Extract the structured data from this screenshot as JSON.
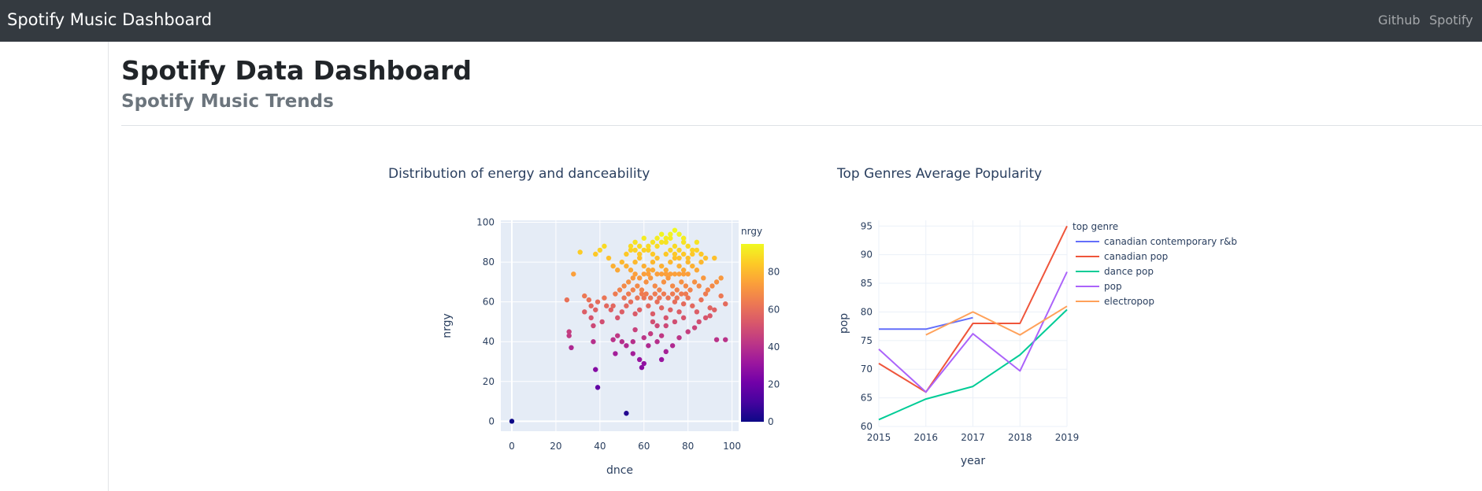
{
  "navbar": {
    "brand": "Spotify Music Dashboard",
    "links": [
      "Github",
      "Spotify"
    ]
  },
  "header": {
    "title": "Spotify Data Dashboard",
    "subtitle": "Spotify Music Trends"
  },
  "chart_data": [
    {
      "type": "scatter",
      "title": "Distribution of energy and danceability",
      "xlabel": "dnce",
      "ylabel": "nrgy",
      "xlim": [
        -5,
        103
      ],
      "ylim": [
        -5,
        101
      ],
      "xticks": [
        0,
        20,
        40,
        60,
        80,
        100
      ],
      "yticks": [
        0,
        20,
        40,
        60,
        80,
        100
      ],
      "colorbar": {
        "title": "nrgy",
        "range": [
          0,
          95
        ],
        "ticks": [
          0,
          20,
          40,
          60,
          80
        ]
      },
      "grid": true,
      "points": [
        [
          0,
          0
        ],
        [
          52,
          4
        ],
        [
          39,
          17
        ],
        [
          38,
          26
        ],
        [
          59,
          27
        ],
        [
          60,
          29
        ],
        [
          58,
          31
        ],
        [
          68,
          31
        ],
        [
          55,
          34
        ],
        [
          47,
          34
        ],
        [
          27,
          37
        ],
        [
          26,
          43
        ],
        [
          26,
          45
        ],
        [
          33,
          55
        ],
        [
          36,
          52
        ],
        [
          37,
          48
        ],
        [
          46,
          41
        ],
        [
          48,
          43
        ],
        [
          50,
          40
        ],
        [
          52,
          38
        ],
        [
          55,
          40
        ],
        [
          56,
          46
        ],
        [
          60,
          42
        ],
        [
          62,
          38
        ],
        [
          63,
          44
        ],
        [
          66,
          40
        ],
        [
          68,
          43
        ],
        [
          70,
          35
        ],
        [
          73,
          38
        ],
        [
          76,
          42
        ],
        [
          80,
          45
        ],
        [
          83,
          47
        ],
        [
          85,
          50
        ],
        [
          88,
          52
        ],
        [
          93,
          41
        ],
        [
          97,
          41
        ],
        [
          90,
          53
        ],
        [
          92,
          56
        ],
        [
          97,
          59
        ],
        [
          95,
          63
        ],
        [
          36,
          58
        ],
        [
          38,
          56
        ],
        [
          39,
          60
        ],
        [
          42,
          62
        ],
        [
          46,
          58
        ],
        [
          48,
          52
        ],
        [
          50,
          55
        ],
        [
          52,
          58
        ],
        [
          54,
          60
        ],
        [
          56,
          54
        ],
        [
          58,
          56
        ],
        [
          60,
          62
        ],
        [
          62,
          58
        ],
        [
          64,
          54
        ],
        [
          66,
          60
        ],
        [
          68,
          57
        ],
        [
          70,
          52
        ],
        [
          72,
          56
        ],
        [
          74,
          60
        ],
        [
          76,
          55
        ],
        [
          78,
          59
        ],
        [
          80,
          62
        ],
        [
          82,
          58
        ],
        [
          84,
          55
        ],
        [
          86,
          61
        ],
        [
          88,
          64
        ],
        [
          90,
          57
        ],
        [
          64,
          50
        ],
        [
          66,
          48
        ],
        [
          70,
          48
        ],
        [
          74,
          50
        ],
        [
          78,
          52
        ],
        [
          47,
          64
        ],
        [
          49,
          66
        ],
        [
          51,
          68
        ],
        [
          53,
          70
        ],
        [
          55,
          72
        ],
        [
          57,
          68
        ],
        [
          59,
          66
        ],
        [
          61,
          70
        ],
        [
          63,
          72
        ],
        [
          65,
          68
        ],
        [
          67,
          66
        ],
        [
          69,
          70
        ],
        [
          71,
          72
        ],
        [
          73,
          68
        ],
        [
          75,
          66
        ],
        [
          77,
          70
        ],
        [
          79,
          68
        ],
        [
          81,
          66
        ],
        [
          83,
          70
        ],
        [
          85,
          68
        ],
        [
          87,
          72
        ],
        [
          89,
          66
        ],
        [
          91,
          68
        ],
        [
          93,
          70
        ],
        [
          95,
          72
        ],
        [
          25,
          61
        ],
        [
          28,
          74
        ],
        [
          31,
          85
        ],
        [
          33,
          63
        ],
        [
          35,
          61
        ],
        [
          38,
          84
        ],
        [
          40,
          86
        ],
        [
          42,
          88
        ],
        [
          44,
          82
        ],
        [
          46,
          78
        ],
        [
          48,
          76
        ],
        [
          50,
          80
        ],
        [
          52,
          84
        ],
        [
          54,
          86
        ],
        [
          56,
          90
        ],
        [
          58,
          88
        ],
        [
          60,
          92
        ],
        [
          62,
          86
        ],
        [
          64,
          84
        ],
        [
          66,
          88
        ],
        [
          68,
          90
        ],
        [
          70,
          92
        ],
        [
          72,
          94
        ],
        [
          74,
          88
        ],
        [
          76,
          86
        ],
        [
          78,
          90
        ],
        [
          80,
          88
        ],
        [
          82,
          86
        ],
        [
          84,
          90
        ],
        [
          86,
          84
        ],
        [
          88,
          82
        ],
        [
          92,
          82
        ],
        [
          52,
          78
        ],
        [
          54,
          76
        ],
        [
          56,
          80
        ],
        [
          58,
          82
        ],
        [
          60,
          78
        ],
        [
          62,
          76
        ],
        [
          64,
          80
        ],
        [
          66,
          82
        ],
        [
          68,
          78
        ],
        [
          70,
          76
        ],
        [
          72,
          80
        ],
        [
          74,
          82
        ],
        [
          76,
          78
        ],
        [
          78,
          76
        ],
        [
          80,
          80
        ],
        [
          82,
          78
        ],
        [
          84,
          76
        ],
        [
          86,
          80
        ],
        [
          56,
          74
        ],
        [
          58,
          72
        ],
        [
          60,
          74
        ],
        [
          62,
          74
        ],
        [
          64,
          76
        ],
        [
          66,
          74
        ],
        [
          68,
          74
        ],
        [
          70,
          74
        ],
        [
          72,
          74
        ],
        [
          74,
          74
        ],
        [
          76,
          74
        ],
        [
          78,
          74
        ],
        [
          80,
          74
        ],
        [
          61,
          64
        ],
        [
          63,
          62
        ],
        [
          65,
          64
        ],
        [
          67,
          62
        ],
        [
          69,
          64
        ],
        [
          71,
          62
        ],
        [
          73,
          64
        ],
        [
          75,
          62
        ],
        [
          77,
          64
        ],
        [
          79,
          64
        ],
        [
          57,
          62
        ],
        [
          59,
          64
        ],
        [
          55,
          66
        ],
        [
          53,
          64
        ],
        [
          51,
          62
        ],
        [
          45,
          56
        ],
        [
          43,
          58
        ],
        [
          41,
          50
        ],
        [
          37,
          40
        ],
        [
          70,
          84
        ],
        [
          72,
          86
        ],
        [
          74,
          84
        ],
        [
          76,
          82
        ],
        [
          78,
          84
        ],
        [
          80,
          82
        ],
        [
          82,
          84
        ],
        [
          84,
          86
        ],
        [
          60,
          86
        ],
        [
          62,
          88
        ],
        [
          64,
          90
        ],
        [
          66,
          92
        ],
        [
          68,
          94
        ],
        [
          70,
          90
        ],
        [
          72,
          92
        ],
        [
          74,
          96
        ],
        [
          76,
          94
        ],
        [
          78,
          92
        ],
        [
          58,
          84
        ],
        [
          56,
          86
        ],
        [
          54,
          88
        ]
      ]
    },
    {
      "type": "line",
      "title": "Top Genres Average Popularity",
      "xlabel": "year",
      "ylabel": "pop",
      "x": [
        2015,
        2016,
        2017,
        2018,
        2019
      ],
      "xlim": [
        2015,
        2019
      ],
      "ylim": [
        60,
        96
      ],
      "yticks": [
        60,
        65,
        70,
        75,
        80,
        85,
        90,
        95
      ],
      "legend": {
        "title": "top genre",
        "placement": "right"
      },
      "grid": true,
      "series": [
        {
          "name": "canadian contemporary r&b",
          "color": "#636efa",
          "values": [
            77,
            77,
            79,
            null,
            null
          ]
        },
        {
          "name": "canadian pop",
          "color": "#ef553b",
          "values": [
            71,
            66,
            78,
            78,
            95
          ]
        },
        {
          "name": "dance pop",
          "color": "#00cc96",
          "values": [
            61.2,
            64.8,
            67,
            72.5,
            80.4
          ]
        },
        {
          "name": "pop",
          "color": "#ab63fa",
          "values": [
            73.5,
            66,
            76.2,
            69.7,
            87
          ]
        },
        {
          "name": "electropop",
          "color": "#ffa15a",
          "values": [
            null,
            76,
            80,
            76,
            81
          ]
        }
      ]
    }
  ]
}
